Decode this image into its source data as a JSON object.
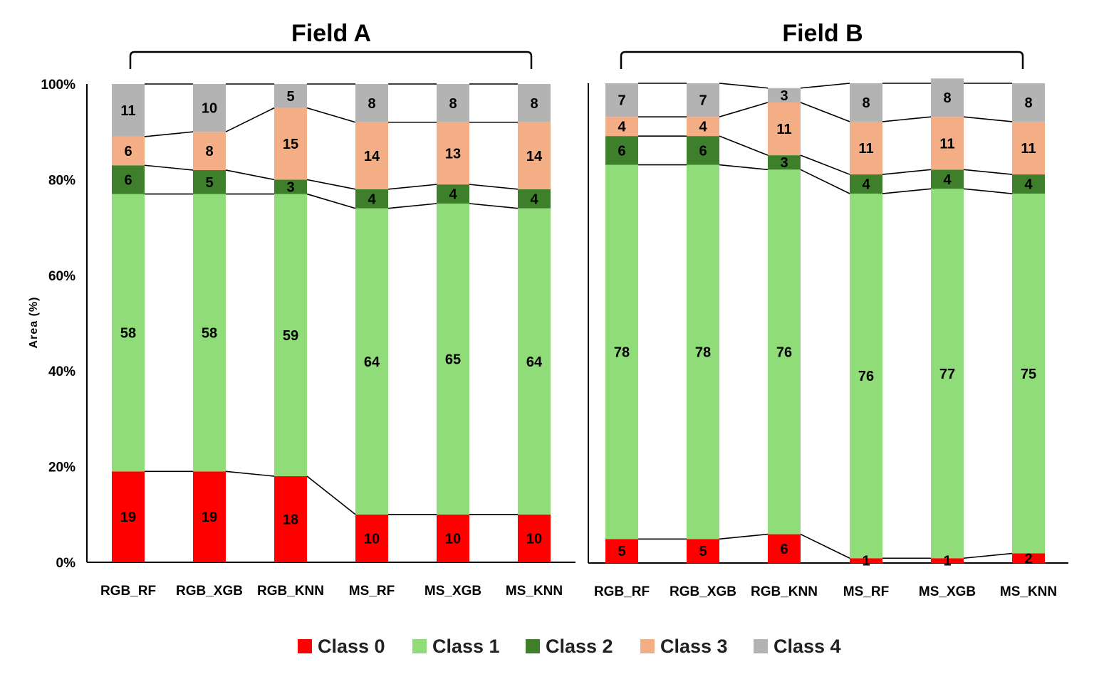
{
  "chart_data": {
    "type": "bar",
    "stacked": true,
    "ylabel": "Area (%)",
    "ylim": [
      0,
      100
    ],
    "yticks": [
      "0%",
      "20%",
      "40%",
      "60%",
      "80%",
      "100%"
    ],
    "series_names": [
      "Class 0",
      "Class 1",
      "Class 2",
      "Class 3",
      "Class 4"
    ],
    "colors": {
      "Class 0": "#ff0000",
      "Class 1": "#8fdc78",
      "Class 2": "#3d7f2b",
      "Class 3": "#f4ae86",
      "Class 4": "#b3b3b3"
    },
    "panels": [
      {
        "title": "Field A",
        "categories": [
          "RGB_RF",
          "RGB_XGB",
          "RGB_KNN",
          "MS_RF",
          "MS_XGB",
          "MS_KNN"
        ],
        "series": [
          {
            "name": "Class 0",
            "values": [
              19,
              19,
              18,
              10,
              10,
              10
            ]
          },
          {
            "name": "Class 1",
            "values": [
              58,
              58,
              59,
              64,
              65,
              64
            ]
          },
          {
            "name": "Class 2",
            "values": [
              6,
              5,
              3,
              4,
              4,
              4
            ]
          },
          {
            "name": "Class 3",
            "values": [
              6,
              8,
              15,
              14,
              13,
              14
            ]
          },
          {
            "name": "Class 4",
            "values": [
              11,
              10,
              5,
              8,
              8,
              8
            ]
          }
        ]
      },
      {
        "title": "Field B",
        "categories": [
          "RGB_RF",
          "RGB_XGB",
          "RGB_KNN",
          "MS_RF",
          "MS_XGB",
          "MS_KNN"
        ],
        "series": [
          {
            "name": "Class 0",
            "values": [
              5,
              5,
              6,
              1,
              1,
              2
            ]
          },
          {
            "name": "Class 1",
            "values": [
              78,
              78,
              76,
              76,
              77,
              75
            ]
          },
          {
            "name": "Class 2",
            "values": [
              6,
              6,
              3,
              4,
              4,
              4
            ]
          },
          {
            "name": "Class 3",
            "values": [
              4,
              4,
              11,
              11,
              11,
              11
            ]
          },
          {
            "name": "Class 4",
            "values": [
              7,
              7,
              3,
              8,
              8,
              8
            ]
          }
        ]
      }
    ],
    "series_lines": true,
    "legend_position": "bottom"
  }
}
